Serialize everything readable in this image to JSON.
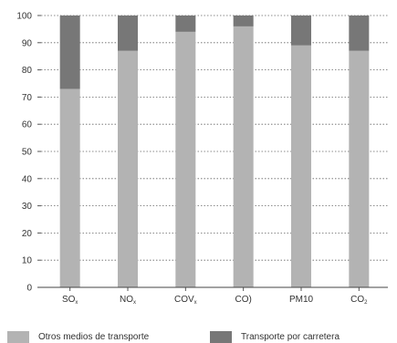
{
  "chart_data": {
    "type": "bar",
    "stacked": true,
    "categories": [
      "SO",
      "NO",
      "COV",
      "CO)",
      "PM10",
      "CO"
    ],
    "category_subscripts": [
      "x",
      "x",
      "x",
      "",
      "",
      "2"
    ],
    "series": [
      {
        "name": "Otros medios de transporte",
        "color": "#b3b3b3",
        "values": [
          73,
          87,
          94,
          96,
          89,
          87
        ]
      },
      {
        "name": "Transporte por carretera",
        "color": "#777777",
        "values": [
          27,
          13,
          6,
          4,
          11,
          13
        ]
      }
    ],
    "ylim": [
      0,
      100
    ],
    "yticks": [
      "0",
      "10",
      "20",
      "30",
      "40",
      "50",
      "60",
      "70",
      "80",
      "90",
      "100"
    ],
    "grid": "dotted horizontal",
    "legend_position": "bottom"
  }
}
